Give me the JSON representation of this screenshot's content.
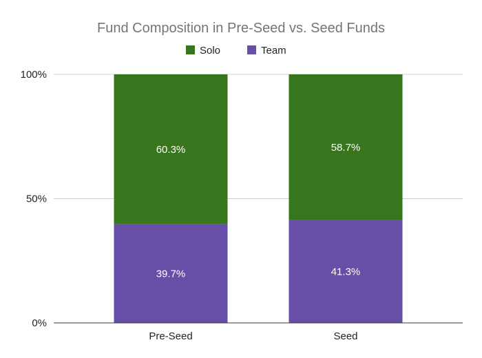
{
  "chart_data": {
    "type": "bar",
    "stacked": true,
    "normalized": true,
    "title": "Fund Composition in Pre-Seed vs. Seed Funds",
    "categories": [
      "Pre-Seed",
      "Seed"
    ],
    "series": [
      {
        "name": "Team",
        "values": [
          39.7,
          41.3
        ],
        "value_labels": [
          "39.7%",
          "41.3%"
        ],
        "color": "#674ea7"
      },
      {
        "name": "Solo",
        "values": [
          60.3,
          58.7
        ],
        "value_labels": [
          "60.3%",
          "58.7%"
        ],
        "color": "#38761d"
      }
    ],
    "legend_order": [
      "Solo",
      "Team"
    ],
    "legend_position": "top",
    "ylim": [
      0,
      100
    ],
    "y_ticks": [
      0,
      50,
      100
    ],
    "y_tick_labels": [
      "0%",
      "50%",
      "100%"
    ],
    "grid": true,
    "xlabel": "",
    "ylabel": ""
  },
  "colors": {
    "grid": "#cccccc",
    "axis": "#333333",
    "title": "#757575"
  }
}
